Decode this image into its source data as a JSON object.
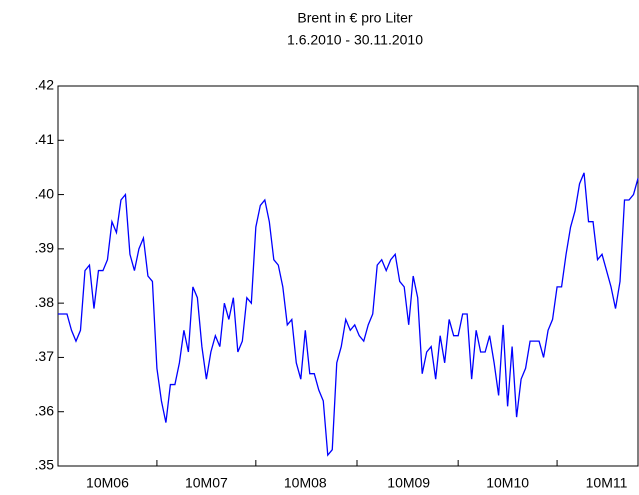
{
  "chart_data": {
    "type": "line",
    "title": "Brent in € pro Liter",
    "subtitle": "1.6.2010 - 30.11.2010",
    "categories": [
      null,
      null,
      null,
      null,
      null,
      null,
      null,
      null,
      null,
      null,
      null,
      "10M06",
      null,
      null,
      null,
      null,
      null,
      null,
      null,
      null,
      null,
      null,
      null,
      null,
      null,
      null,
      null,
      null,
      null,
      null,
      null,
      null,
      null,
      "10M07",
      null,
      null,
      null,
      null,
      null,
      null,
      null,
      null,
      null,
      null,
      null,
      null,
      null,
      null,
      null,
      null,
      null,
      null,
      null,
      null,
      null,
      "10M08",
      null,
      null,
      null,
      null,
      null,
      null,
      null,
      null,
      null,
      null,
      null,
      null,
      null,
      null,
      null,
      null,
      null,
      null,
      null,
      null,
      null,
      null,
      "10M09",
      null,
      null,
      null,
      null,
      null,
      null,
      null,
      null,
      null,
      null,
      null,
      null,
      null,
      null,
      null,
      null,
      null,
      null,
      null,
      null,
      null,
      "10M10",
      null,
      null,
      null,
      null,
      null,
      null,
      null,
      null,
      null,
      null,
      null,
      null,
      null,
      null,
      null,
      null,
      null,
      null,
      null,
      null,
      null,
      "10M11",
      null,
      null,
      null,
      null,
      null,
      null,
      null
    ],
    "values": [
      0.378,
      0.378,
      0.378,
      0.375,
      0.373,
      0.375,
      0.386,
      0.387,
      0.379,
      0.386,
      0.386,
      0.388,
      0.395,
      0.393,
      0.399,
      0.4,
      0.389,
      0.386,
      0.39,
      0.392,
      0.385,
      0.384,
      0.368,
      0.362,
      0.358,
      0.365,
      0.365,
      0.369,
      0.375,
      0.371,
      0.383,
      0.381,
      0.372,
      0.366,
      0.371,
      0.374,
      0.372,
      0.38,
      0.377,
      0.381,
      0.371,
      0.373,
      0.381,
      0.38,
      0.394,
      0.398,
      0.399,
      0.395,
      0.388,
      0.387,
      0.383,
      0.376,
      0.377,
      0.369,
      0.366,
      0.375,
      0.367,
      0.367,
      0.364,
      0.362,
      0.352,
      0.353,
      0.369,
      0.372,
      0.377,
      0.375,
      0.376,
      0.374,
      0.373,
      0.376,
      0.378,
      0.387,
      0.388,
      0.386,
      0.388,
      0.389,
      0.384,
      0.383,
      0.376,
      0.385,
      0.381,
      0.367,
      0.371,
      0.372,
      0.366,
      0.374,
      0.369,
      0.377,
      0.374,
      0.374,
      0.378,
      0.378,
      0.366,
      0.375,
      0.371,
      0.371,
      0.374,
      0.369,
      0.363,
      0.376,
      0.361,
      0.372,
      0.359,
      0.366,
      0.368,
      0.373,
      0.373,
      0.373,
      0.37,
      0.375,
      0.377,
      0.383,
      0.383,
      0.389,
      0.394,
      0.397,
      0.402,
      0.404,
      0.395,
      0.395,
      0.388,
      0.389,
      0.386,
      0.383,
      0.379,
      0.384,
      0.399,
      0.399,
      0.4,
      0.403
    ],
    "color": "#0000ff",
    "ylim": [
      0.35,
      0.42
    ],
    "yticks": [
      {
        "value": 0.35,
        "label": ".35"
      },
      {
        "value": 0.36,
        "label": ".36"
      },
      {
        "value": 0.37,
        "label": ".37"
      },
      {
        "value": 0.38,
        "label": ".38"
      },
      {
        "value": 0.39,
        "label": ".39"
      },
      {
        "value": 0.4,
        "label": ".40"
      },
      {
        "value": 0.41,
        "label": ".41"
      },
      {
        "value": 0.42,
        "label": ".42"
      }
    ]
  }
}
